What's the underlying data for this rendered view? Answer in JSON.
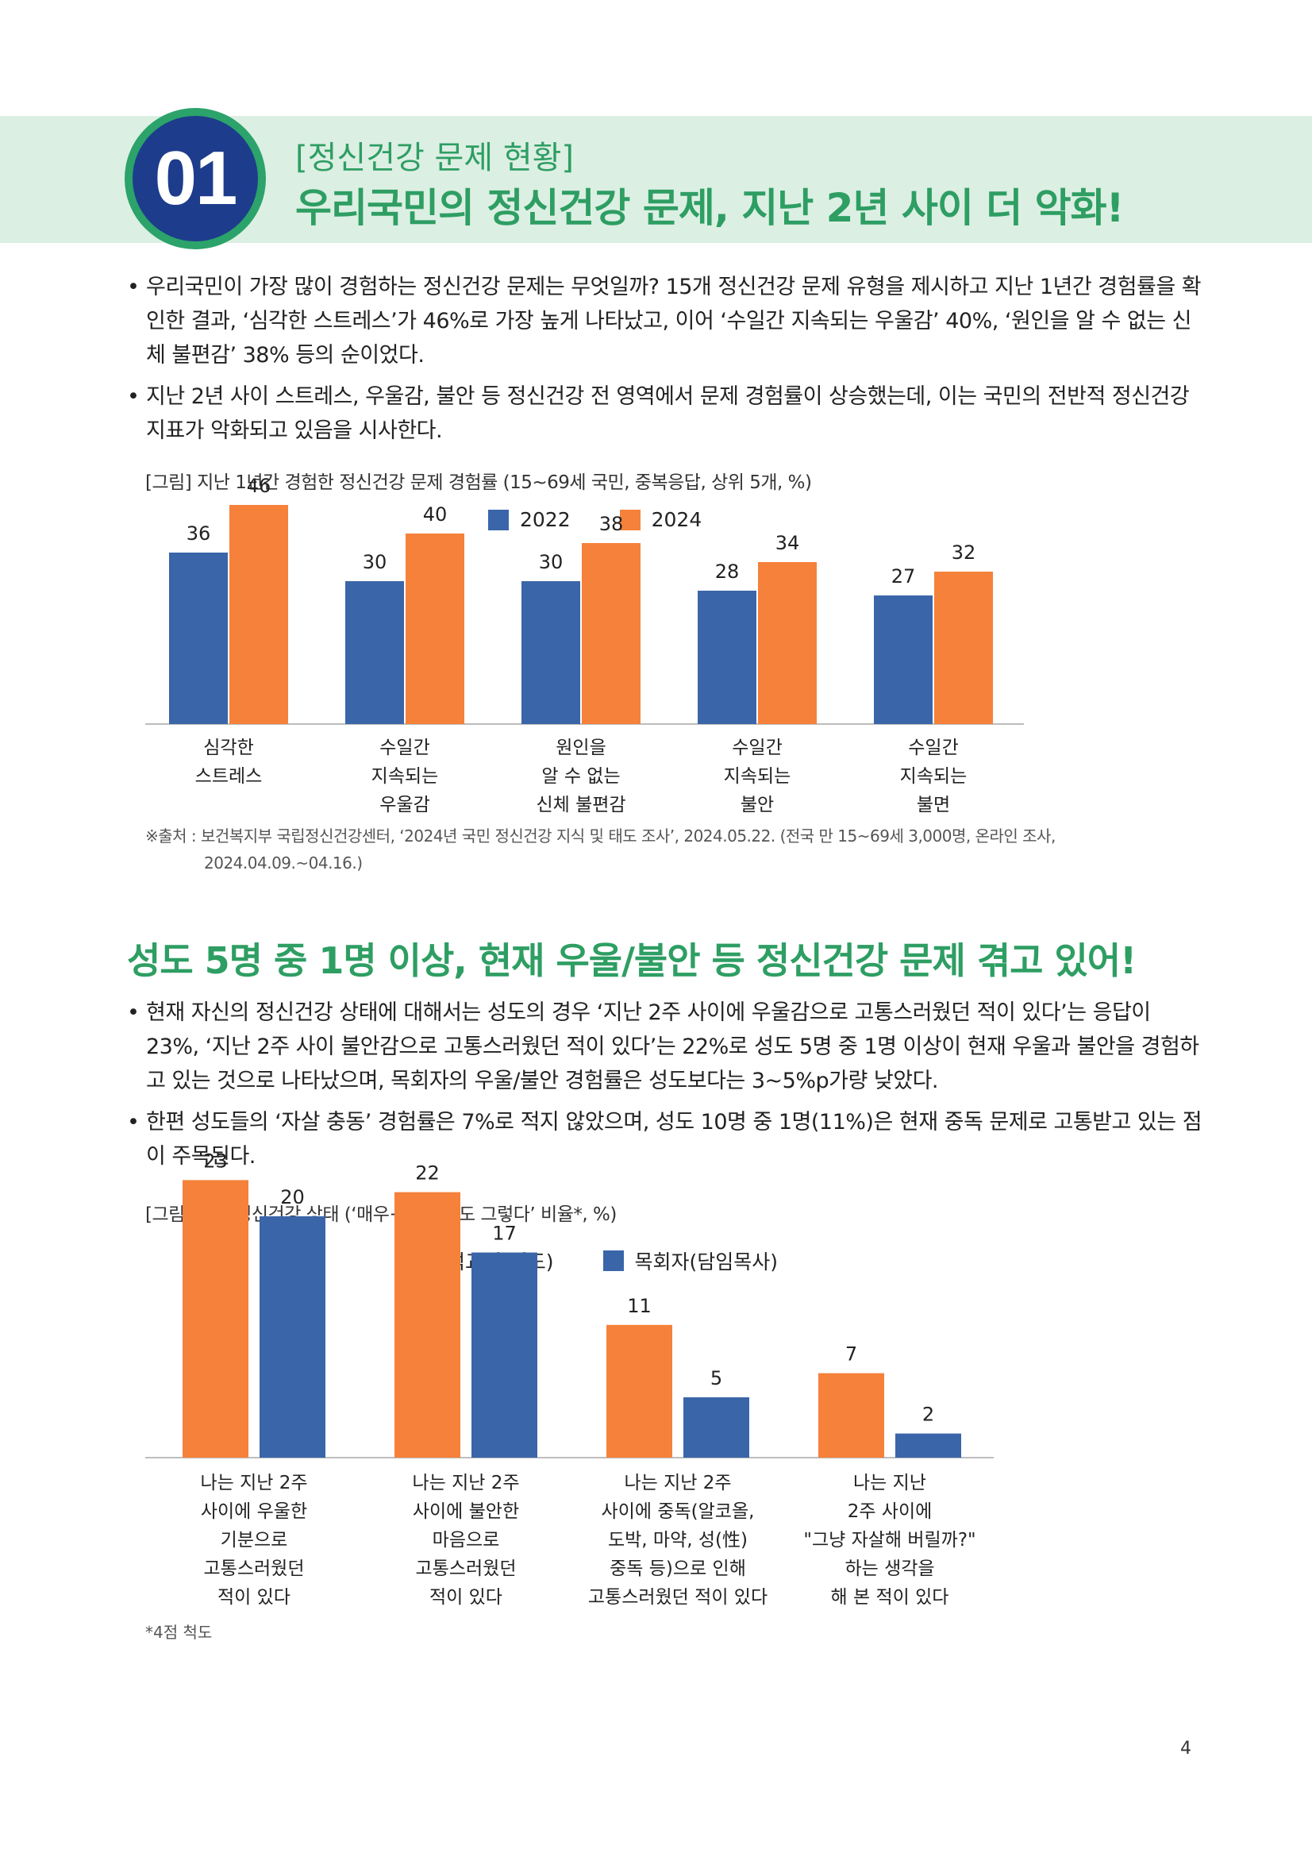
{
  "header": {
    "number": "01",
    "kicker": "[정신건강 문제 현황]",
    "headline": "우리국민의 정신건강 문제, 지난 2년 사이 더 악화!"
  },
  "section1": {
    "bullets": [
      "우리국민이 가장 많이 경험하는 정신건강 문제는 무엇일까? 15개 정신건강 문제 유형을 제시하고 지난 1년간 경험률을 확인한 결과, ‘심각한 스트레스’가 46%로 가장 높게 나타났고, 이어 ‘수일간 지속되는 우울감’ 40%, ‘원인을 알 수 없는 신체 불편감’ 38% 등의 순이었다.",
      "지난 2년 사이 스트레스, 우울감, 불안 등 정신건강 전 영역에서 문제 경험률이 상승했는데, 이는 국민의 전반적 정신건강 지표가 악화되고 있음을 시사한다."
    ],
    "figure_caption": "[그림] 지난 1년간 경험한 정신건강 문제 경험률 (15~69세 국민, 중복응답, 상위 5개, %)",
    "source_line1": "※출처 : 보건복지부 국립정신건강센터, ‘2024년 국민 정신건강 지식 및 태도 조사’, 2024.05.22. (전국 만 15~69세 3,000명, 온라인 조사,",
    "source_line2": "2024.04.09.~04.16.)"
  },
  "section2": {
    "title": "성도 5명 중 1명 이상, 현재 우울/불안 등 정신건강 문제 겪고 있어!",
    "bullets": [
      "현재 자신의 정신건강 상태에 대해서는 성도의 경우 ‘지난 2주 사이에 우울감으로 고통스러웠던 적이 있다’는 응답이 23%, ‘지난 2주 사이 불안감으로 고통스러웠던 적이 있다’는 22%로 성도 5명 중 1명 이상이 현재 우울과 불안을 경험하고 있는 것으로 나타났으며, 목회자의 우울/불안 경험률은 성도보다는 3~5%p가량 낮았다.",
      "한편 성도들의 ‘자살 충동’ 경험률은 7%로 적지 않았으며, 성도 10명 중 1명(11%)은 현재 중독 문제로 고통받고 있는 점이 주목된다."
    ],
    "figure_caption": "[그림] 현재 정신건강 상태 (‘매우+어느 정도 그렇다’ 비율*, %)",
    "footnote": "*4점 척도"
  },
  "page_number": "4",
  "colors": {
    "blue": "#3a65a8",
    "orange": "#f5813a",
    "green": "#2e9e63",
    "band": "#dcefe3"
  },
  "chart_data": [
    {
      "type": "bar",
      "series": [
        {
          "name": "2022",
          "color": "#3a65a8",
          "values": [
            36,
            30,
            30,
            28,
            27
          ]
        },
        {
          "name": "2024",
          "color": "#f5813a",
          "values": [
            46,
            40,
            38,
            34,
            32
          ]
        }
      ],
      "categories": [
        [
          "심각한",
          "스트레스"
        ],
        [
          "수일간",
          "지속되는",
          "우울감"
        ],
        [
          "원인을",
          "알 수 없는",
          "신체 불편감"
        ],
        [
          "수일간",
          "지속되는",
          "불안"
        ],
        [
          "수일간",
          "지속되는",
          "불면"
        ]
      ],
      "ylim": [
        0,
        50
      ],
      "legend": "top-center",
      "grid": false
    },
    {
      "type": "bar",
      "series": [
        {
          "name": "출석교인(성도)",
          "color": "#f5813a",
          "values": [
            23,
            22,
            11,
            7
          ]
        },
        {
          "name": "목회자(담임목사)",
          "color": "#3a65a8",
          "values": [
            20,
            17,
            5,
            2
          ]
        }
      ],
      "categories": [
        [
          "나는 지난 2주",
          "사이에 우울한",
          "기분으로",
          "고통스러웠던",
          "적이 있다"
        ],
        [
          "나는 지난 2주",
          "사이에 불안한",
          "마음으로",
          "고통스러웠던",
          "적이 있다"
        ],
        [
          "나는 지난 2주",
          "사이에 중독(알코올,",
          "도박, 마약, 성(性)",
          "중독 등)으로 인해",
          "고통스러웠던 적이 있다"
        ],
        [
          "나는 지난",
          "2주 사이에",
          "\"그냥 자살해 버릴까?\"",
          "하는 생각을",
          "해 본 적이 있다"
        ]
      ],
      "ylim": [
        0,
        25
      ],
      "legend": "top-center",
      "grid": false
    }
  ]
}
